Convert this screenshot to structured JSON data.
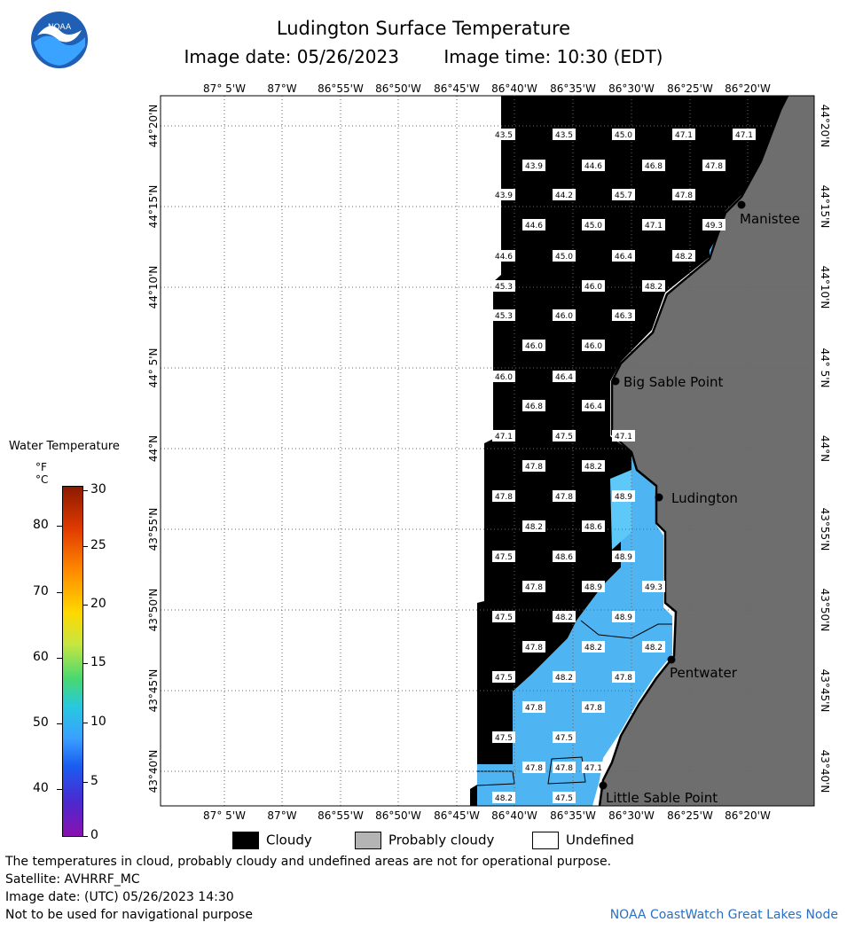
{
  "header": {
    "title": "Ludington Surface Temperature",
    "image_date": "Image date: 05/26/2023",
    "image_time": "Image time: 10:30 (EDT)",
    "logo_text": "NOAA"
  },
  "map": {
    "lon_labels": [
      "87° 5'W",
      "87°W",
      "86°55'W",
      "86°50'W",
      "86°45'W",
      "86°40'W",
      "86°35'W",
      "86°30'W",
      "86°25'W",
      "86°20'W"
    ],
    "lat_labels": [
      "44°20'N",
      "44°15'N",
      "44°10'N",
      "44° 5'N",
      "44°N",
      "43°55'N",
      "43°50'N",
      "43°45'N",
      "43°40'N"
    ],
    "places": [
      {
        "name": "Manistee"
      },
      {
        "name": "Big Sable Point"
      },
      {
        "name": "Ludington"
      },
      {
        "name": "Pentwater"
      },
      {
        "name": "Little Sable Point"
      }
    ],
    "temperature_labels": [
      "43.5",
      "43.5",
      "45.0",
      "47.1",
      "47.1",
      "43.9",
      "44.6",
      "46.8",
      "47.8",
      "43.9",
      "44.2",
      "45.7",
      "47.8",
      "44.6",
      "45.0",
      "47.1",
      "49.3",
      "44.6",
      "45.0",
      "46.4",
      "48.2",
      "45.3",
      "46.0",
      "48.2",
      "45.3",
      "46.0",
      "46.3",
      "46.0",
      "46.0",
      "46.0",
      "46.4",
      "46.8",
      "46.4",
      "47.1",
      "47.5",
      "47.1",
      "47.8",
      "48.2",
      "47.8",
      "47.8",
      "48.9",
      "48.2",
      "48.6",
      "47.5",
      "48.6",
      "48.9",
      "47.8",
      "48.9",
      "49.3",
      "47.5",
      "48.2",
      "48.9",
      "47.8",
      "48.2",
      "48.2",
      "47.5",
      "48.2",
      "47.8",
      "47.8",
      "47.8",
      "47.5",
      "47.5",
      "47.8",
      "47.8",
      "47.1",
      "48.2",
      "47.5"
    ],
    "colors": {
      "cloud": "#000000",
      "land": "#6e6e6e",
      "water": "#4fb4f2",
      "water_light": "#5ec8f8",
      "grid": "#555555"
    }
  },
  "legend": {
    "title": "Water Temperature",
    "unit_f": "°F",
    "unit_c": "°C",
    "f_ticks": [
      "80",
      "70",
      "60",
      "50",
      "40"
    ],
    "c_ticks": [
      "30",
      "25",
      "20",
      "15",
      "10",
      "5",
      "0"
    ]
  },
  "keys": {
    "cloudy": "Cloudy",
    "probably_cloudy": "Probably cloudy",
    "undefined": "Undefined"
  },
  "footer": {
    "line1": "The temperatures in cloud, probably cloudy and undefined areas are not for operational purpose.",
    "line2": "Satellite: AVHRRF_MC",
    "line3": "Image date: (UTC) 05/26/2023  14:30",
    "line4": "Not to be used for navigational purpose",
    "credit": "NOAA CoastWatch Great Lakes Node"
  }
}
